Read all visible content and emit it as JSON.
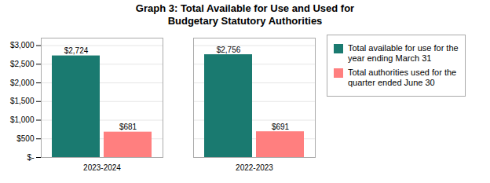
{
  "chart_data": {
    "type": "bar",
    "title": "Graph 3: Total Available for Use and Used for\nBudgetary Statutory Authorities",
    "categories": [
      "2023-2024",
      "2022-2023"
    ],
    "series": [
      {
        "name": "Total available for use for the\nyear ending March 31",
        "color": "#1a7a70",
        "values": [
          2724,
          2756
        ],
        "value_labels": [
          "$2,724",
          "$2,756"
        ]
      },
      {
        "name": "Total authorities used for the\nquarter ended June 30",
        "color": "#ff7f7f",
        "values": [
          681,
          691
        ],
        "value_labels": [
          "$681",
          "$691"
        ]
      }
    ],
    "ylim": [
      0,
      3200
    ],
    "yticks": [
      {
        "value": 0,
        "label": "$-"
      },
      {
        "value": 500,
        "label": "$500"
      },
      {
        "value": 1000,
        "label": "$1,000"
      },
      {
        "value": 1500,
        "label": "$1,500"
      },
      {
        "value": 2000,
        "label": "$2,000"
      },
      {
        "value": 2500,
        "label": "$2,500"
      },
      {
        "value": 3000,
        "label": "$3,000"
      }
    ],
    "grid": true,
    "legend": "right",
    "data_labels": true
  }
}
